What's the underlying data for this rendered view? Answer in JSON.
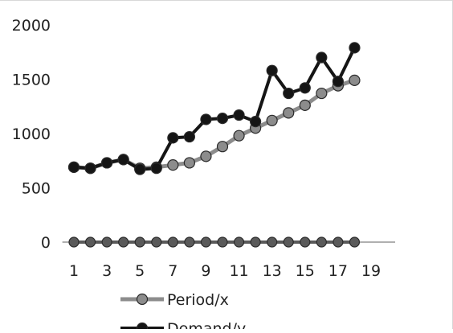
{
  "chart_data": {
    "type": "line",
    "title": "",
    "xlabel": "",
    "ylabel": "",
    "x_ticks": [
      "1",
      "3",
      "5",
      "7",
      "9",
      "11",
      "13",
      "15",
      "17",
      "19"
    ],
    "y_ticks": [
      "0",
      "500",
      "1000",
      "1500",
      "2000"
    ],
    "xlim": [
      0.3,
      19.8
    ],
    "ylim": [
      0,
      2000
    ],
    "grid": false,
    "legend_position": "bottom-left",
    "x": [
      1,
      2,
      3,
      4,
      5,
      6,
      7,
      8,
      9,
      10,
      11,
      12,
      13,
      14,
      15,
      16,
      17,
      18
    ],
    "series": [
      {
        "name": "Period/x",
        "color": "#8c8c8c",
        "values": [
          690,
          680,
          730,
          760,
          680,
          690,
          710,
          730,
          790,
          880,
          980,
          1050,
          1120,
          1190,
          1260,
          1370,
          1440,
          1490
        ]
      },
      {
        "name": "Demand/y",
        "color": "#151515",
        "values": [
          690,
          680,
          730,
          760,
          670,
          680,
          960,
          970,
          1130,
          1140,
          1170,
          1110,
          1580,
          1370,
          1420,
          1700,
          1480,
          1790
        ]
      },
      {
        "name": "",
        "color": "#5a5a5a",
        "values": [
          0,
          0,
          0,
          0,
          0,
          0,
          0,
          0,
          0,
          0,
          0,
          0,
          0,
          0,
          0,
          0,
          0,
          0
        ]
      }
    ]
  }
}
